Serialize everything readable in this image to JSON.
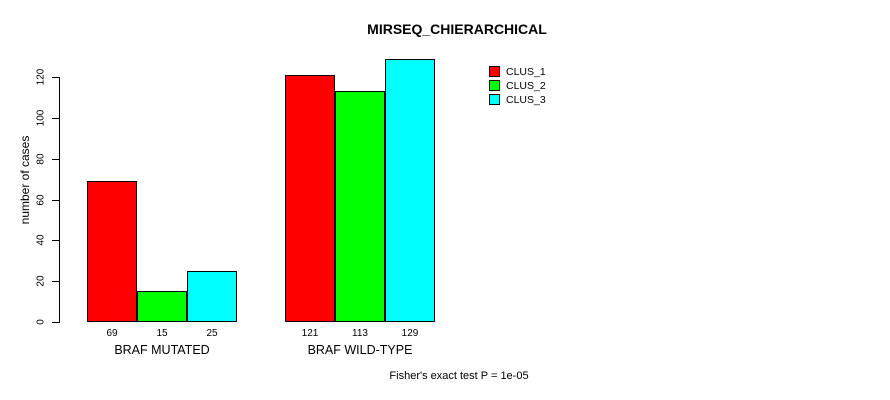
{
  "title": "MIRSEQ_CHIERARCHICAL",
  "caption": "Fisher's exact test P = 1e-05",
  "chart_data": {
    "type": "bar",
    "title": "MIRSEQ_CHIERARCHICAL",
    "categories": [
      "BRAF MUTATED",
      "BRAF WILD-TYPE"
    ],
    "series": [
      {
        "name": "CLUS_1",
        "color": "#FF0000",
        "values": [
          69,
          121
        ]
      },
      {
        "name": "CLUS_2",
        "color": "#00FF00",
        "values": [
          15,
          113
        ]
      },
      {
        "name": "CLUS_3",
        "color": "#00FFFF",
        "values": [
          25,
          129
        ]
      }
    ],
    "bar_labels": [
      [
        69,
        15,
        25
      ],
      [
        121,
        113,
        129
      ]
    ],
    "xlabel": "",
    "ylabel": "number of cases",
    "ylim": [
      0,
      120
    ],
    "yticks": [
      0,
      20,
      40,
      60,
      80,
      100,
      120
    ],
    "grid": false,
    "legend_position": "top-right",
    "annotation": "Fisher's exact test P = 1e-05",
    "axis_color": "#000000",
    "text_color": "#000000"
  }
}
